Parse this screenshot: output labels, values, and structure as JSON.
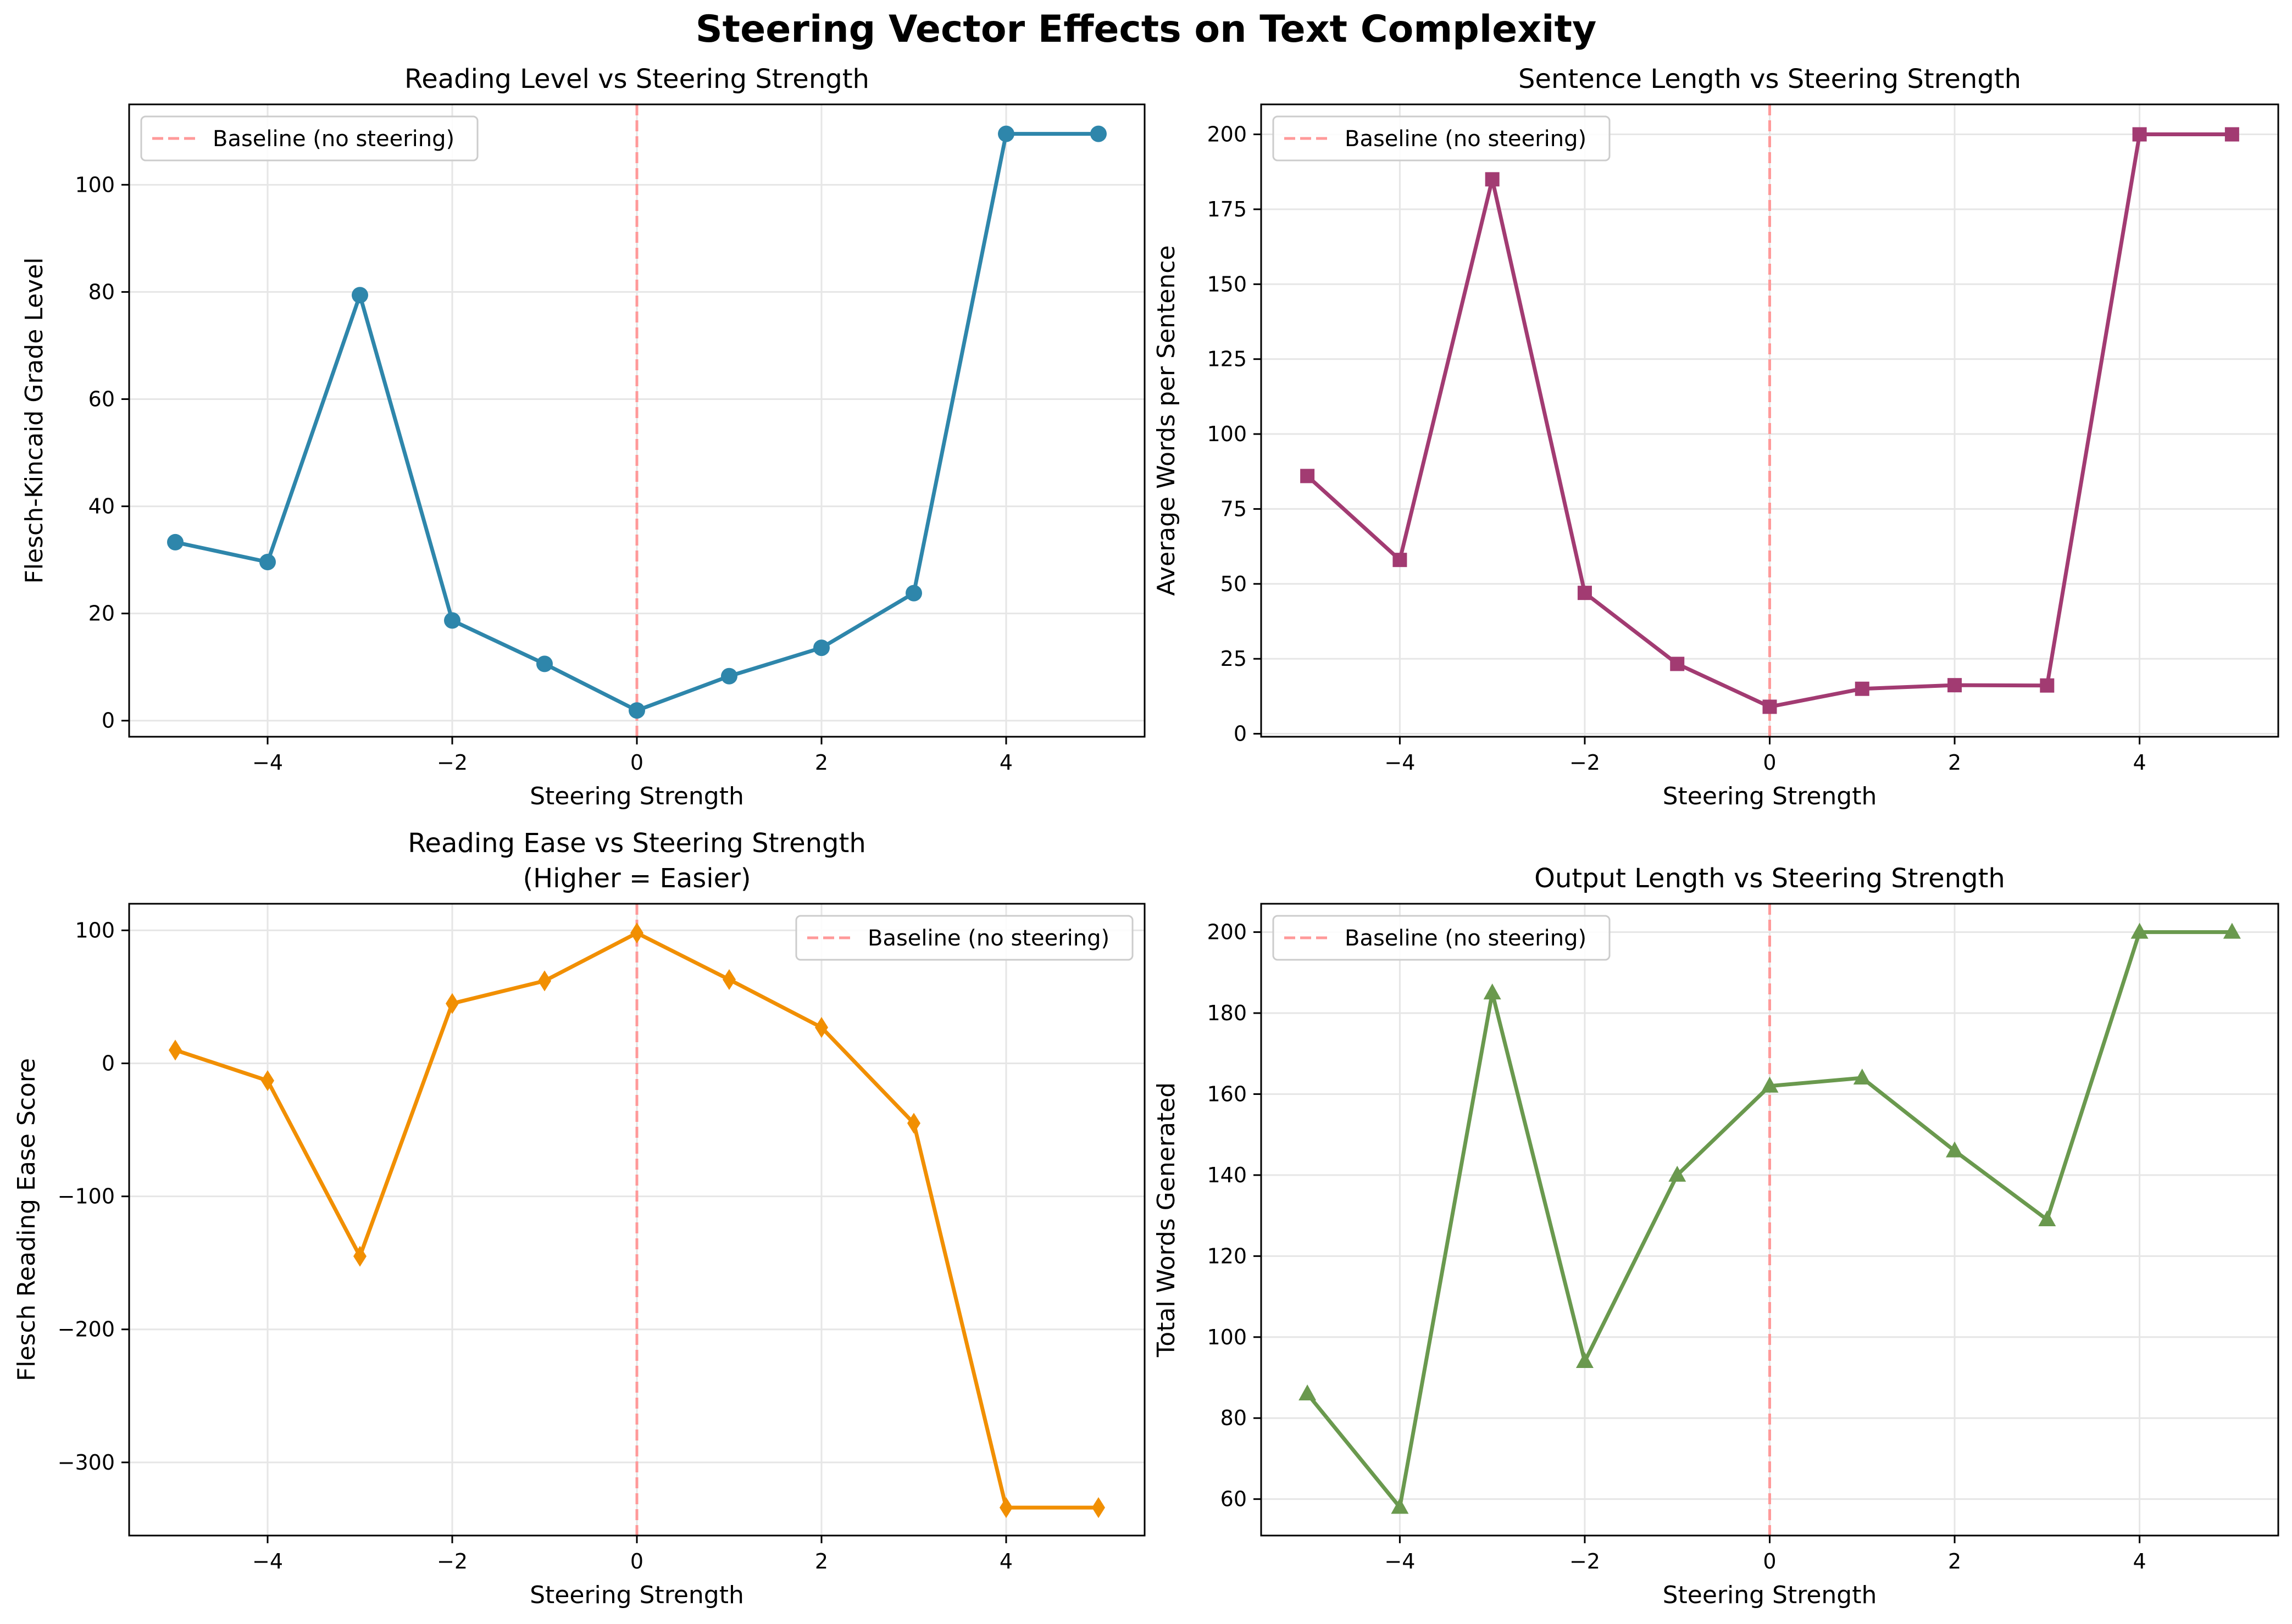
{
  "title": "Steering Vector Effects on Text Complexity",
  "colors": {
    "baseline": "#ff9999",
    "grid": "#e6e6e6",
    "axis": "#000000"
  },
  "chart_data": [
    {
      "type": "line",
      "title": "Reading Level vs Steering Strength",
      "xlabel": "Steering Strength",
      "ylabel": "Flesch-Kincaid Grade Level",
      "xlim": [
        -5.5,
        5.5
      ],
      "ylim": [
        -3,
        115
      ],
      "x_ticks": [
        -4,
        -2,
        0,
        2,
        4
      ],
      "x_tick_labels": [
        "−4",
        "−2",
        "0",
        "2",
        "4"
      ],
      "y_ticks": [
        0,
        20,
        40,
        60,
        80,
        100
      ],
      "y_tick_labels": [
        "0",
        "20",
        "40",
        "60",
        "80",
        "100"
      ],
      "grid": true,
      "legend": {
        "label": "Baseline (no steering)",
        "position": "upper-left"
      },
      "baseline_x": 0,
      "series": [
        {
          "color": "#2e86ab",
          "marker": "circle",
          "x": [
            -5,
            -4,
            -3,
            -2,
            -1,
            0,
            1,
            2,
            3,
            4,
            5
          ],
          "y": [
            33.3,
            29.6,
            79.4,
            18.7,
            10.6,
            1.9,
            8.3,
            13.6,
            23.8,
            109.5,
            109.5
          ]
        }
      ]
    },
    {
      "type": "line",
      "title": "Sentence Length vs Steering Strength",
      "xlabel": "Steering Strength",
      "ylabel": "Average Words per Sentence",
      "xlim": [
        -5.5,
        5.5
      ],
      "ylim": [
        -1,
        210
      ],
      "x_ticks": [
        -4,
        -2,
        0,
        2,
        4
      ],
      "x_tick_labels": [
        "−4",
        "−2",
        "0",
        "2",
        "4"
      ],
      "y_ticks": [
        0,
        25,
        50,
        75,
        100,
        125,
        150,
        175,
        200
      ],
      "y_tick_labels": [
        "0",
        "25",
        "50",
        "75",
        "100",
        "125",
        "150",
        "175",
        "200"
      ],
      "grid": true,
      "legend": {
        "label": "Baseline (no steering)",
        "position": "upper-left"
      },
      "baseline_x": 0,
      "series": [
        {
          "color": "#a23b72",
          "marker": "square",
          "x": [
            -5,
            -4,
            -3,
            -2,
            -1,
            0,
            1,
            2,
            3,
            4,
            5
          ],
          "y": [
            86,
            58,
            185,
            47,
            23.3,
            9,
            15,
            16.2,
            16.1,
            200,
            200
          ]
        }
      ]
    },
    {
      "type": "line",
      "title": "Reading Ease vs Steering Strength",
      "subtitle": "(Higher = Easier)",
      "xlabel": "Steering Strength",
      "ylabel": "Flesch Reading Ease Score",
      "xlim": [
        -5.5,
        5.5
      ],
      "ylim": [
        -355,
        120
      ],
      "x_ticks": [
        -4,
        -2,
        0,
        2,
        4
      ],
      "x_tick_labels": [
        "−4",
        "−2",
        "0",
        "2",
        "4"
      ],
      "y_ticks": [
        -300,
        -200,
        -100,
        0,
        100
      ],
      "y_tick_labels": [
        "−300",
        "−200",
        "−100",
        "0",
        "100"
      ],
      "grid": true,
      "legend": {
        "label": "Baseline (no steering)",
        "position": "upper-right"
      },
      "baseline_x": 0,
      "series": [
        {
          "color": "#f18f01",
          "marker": "diamond",
          "x": [
            -5,
            -4,
            -3,
            -2,
            -1,
            0,
            1,
            2,
            3,
            4,
            5
          ],
          "y": [
            10,
            -13,
            -145,
            45,
            62,
            98,
            63,
            27,
            -45,
            -334,
            -334
          ]
        }
      ]
    },
    {
      "type": "line",
      "title": "Output Length vs Steering Strength",
      "xlabel": "Steering Strength",
      "ylabel": "Total Words Generated",
      "xlim": [
        -5.5,
        5.5
      ],
      "ylim": [
        51,
        207
      ],
      "x_ticks": [
        -4,
        -2,
        0,
        2,
        4
      ],
      "x_tick_labels": [
        "−4",
        "−2",
        "0",
        "2",
        "4"
      ],
      "y_ticks": [
        60,
        80,
        100,
        120,
        140,
        160,
        180,
        200
      ],
      "y_tick_labels": [
        "60",
        "80",
        "100",
        "120",
        "140",
        "160",
        "180",
        "200"
      ],
      "grid": true,
      "legend": {
        "label": "Baseline (no steering)",
        "position": "upper-left"
      },
      "baseline_x": 0,
      "series": [
        {
          "color": "#6a994e",
          "marker": "triangle",
          "x": [
            -5,
            -4,
            -3,
            -2,
            -1,
            0,
            1,
            2,
            3,
            4,
            5
          ],
          "y": [
            86,
            58,
            185,
            94,
            140,
            162,
            164,
            146,
            129,
            200,
            200
          ]
        }
      ]
    }
  ]
}
